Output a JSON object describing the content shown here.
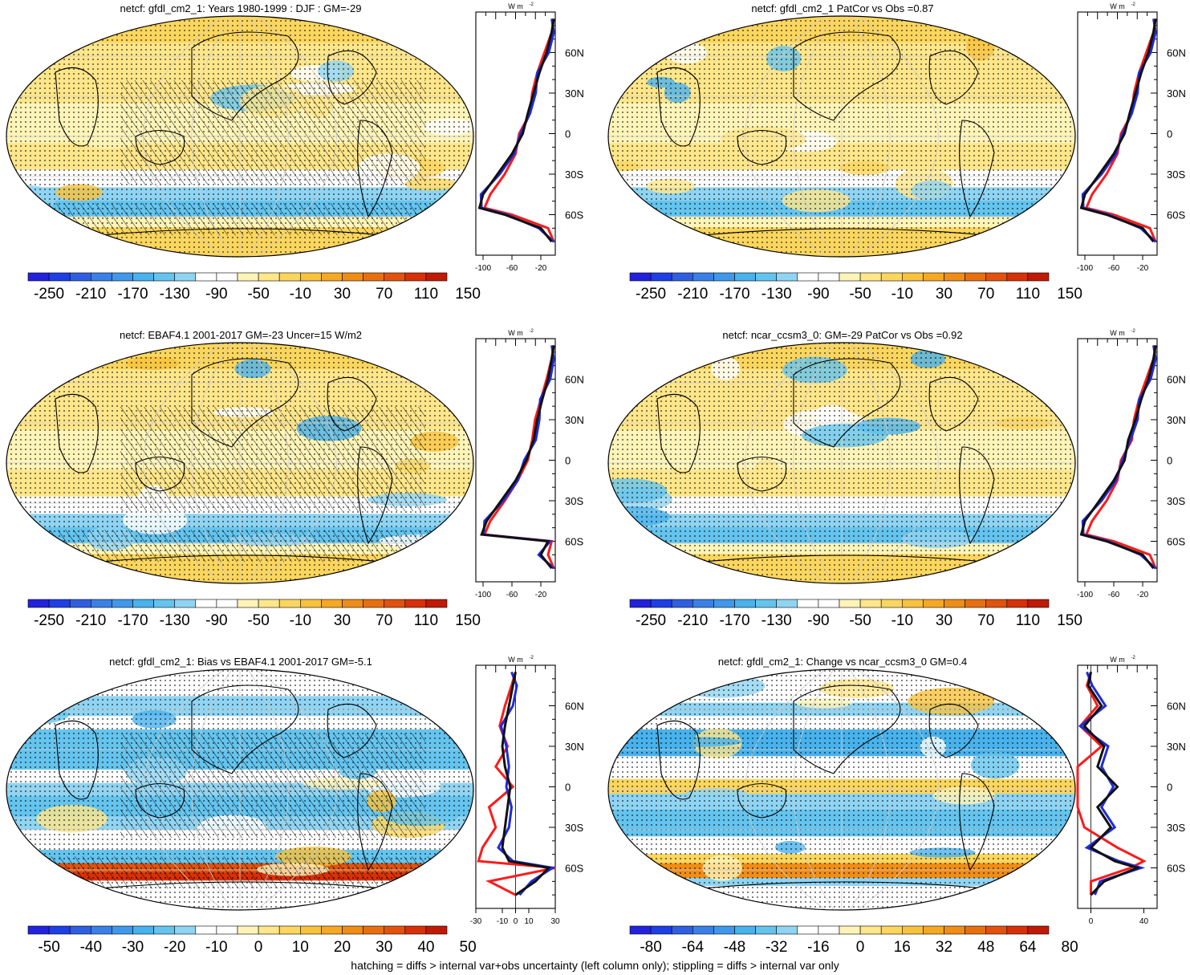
{
  "footnote": "hatching = diffs > internal var+obs uncertainty (left column only); stippling = diffs > internal var only",
  "palettes": {
    "abs": [
      "#2222dd",
      "#1e3ee6",
      "#2f5fe0",
      "#3a80e6",
      "#3f98ea",
      "#48b2ec",
      "#64c4ee",
      "#8fd4f2",
      "#ffffff",
      "#ffffff",
      "#fff4b8",
      "#ffe68a",
      "#fbd65e",
      "#f9c23c",
      "#f5a822",
      "#f08d16",
      "#e86f10",
      "#e2520c",
      "#d83008",
      "#c01a05"
    ],
    "bias": [
      "#2222dd",
      "#1e3ee6",
      "#2f5fe0",
      "#3a80e6",
      "#3f98ea",
      "#48b2ec",
      "#64c4ee",
      "#8fd4f2",
      "#ffffff",
      "#ffffff",
      "#fff4b8",
      "#ffe68a",
      "#fbd65e",
      "#f9c23c",
      "#f5a822",
      "#f08d16",
      "#e86f10",
      "#e2520c",
      "#d83008",
      "#c01a05"
    ]
  },
  "line_colors": {
    "model": "#111111",
    "obs": "#ff1a1a",
    "other": "#1f2bdd"
  },
  "panels": [
    {
      "title": "netcf: gfdl_cm2_1: Years 1980-1999 : DJF : GM=-29",
      "kind": "abs",
      "hatch": true,
      "seed": 1,
      "colorbar_ticks": [
        "-250",
        "-210",
        "-170",
        "-130",
        "-90",
        "-50",
        "-10",
        "30",
        "70",
        "110",
        "150"
      ],
      "profile": {
        "unit": "W m",
        "unit_sup": "-2",
        "xticks": [
          "-100",
          "-60",
          "-20"
        ],
        "xticks_val": [
          -100,
          -60,
          -20
        ],
        "xlim": [
          -110,
          0
        ],
        "zero_line": false,
        "lat_ticks": [
          "60N",
          "30N",
          "0",
          "30S",
          "60S"
        ],
        "lat_vals": [
          60,
          30,
          0,
          -30,
          -60
        ]
      }
    },
    {
      "title": "netcf: gfdl_cm2_1 PatCor vs Obs =0.87",
      "kind": "abs",
      "hatch": false,
      "seed": 2,
      "colorbar_ticks": [
        "-250",
        "-210",
        "-170",
        "-130",
        "-90",
        "-50",
        "-10",
        "30",
        "70",
        "110",
        "150"
      ],
      "profile": {
        "unit": "W m",
        "unit_sup": "-2",
        "xticks": [
          "-100",
          "-60",
          "-20"
        ],
        "xticks_val": [
          -100,
          -60,
          -20
        ],
        "xlim": [
          -110,
          0
        ],
        "zero_line": false,
        "lat_ticks": [
          "60N",
          "30N",
          "0",
          "30S",
          "60S"
        ],
        "lat_vals": [
          60,
          30,
          0,
          -30,
          -60
        ]
      }
    },
    {
      "title": "netcf: EBAF4.1 2001-2017 GM=-23 Uncer=15 W/m2",
      "kind": "abs",
      "hatch": true,
      "seed": 3,
      "colorbar_ticks": [
        "-250",
        "-210",
        "-170",
        "-130",
        "-90",
        "-50",
        "-10",
        "30",
        "70",
        "110",
        "150"
      ],
      "profile": {
        "unit": "W m",
        "unit_sup": "-2",
        "xticks": [
          "-100",
          "-60",
          "-20"
        ],
        "xticks_val": [
          -100,
          -60,
          -20
        ],
        "xlim": [
          -110,
          0
        ],
        "zero_line": false,
        "lat_ticks": [
          "60N",
          "30N",
          "0",
          "30S",
          "60S"
        ],
        "lat_vals": [
          60,
          30,
          0,
          -30,
          -60
        ]
      }
    },
    {
      "title": "netcf: ncar_ccsm3_0: GM=-29 PatCor vs Obs =0.92",
      "kind": "abs",
      "hatch": false,
      "seed": 4,
      "colorbar_ticks": [
        "-250",
        "-210",
        "-170",
        "-130",
        "-90",
        "-50",
        "-10",
        "30",
        "70",
        "110",
        "150"
      ],
      "profile": {
        "unit": "W m",
        "unit_sup": "-2",
        "xticks": [
          "-100",
          "-60",
          "-20"
        ],
        "xticks_val": [
          -100,
          -60,
          -20
        ],
        "xlim": [
          -110,
          0
        ],
        "zero_line": false,
        "lat_ticks": [
          "60N",
          "30N",
          "0",
          "30S",
          "60S"
        ],
        "lat_vals": [
          60,
          30,
          0,
          -30,
          -60
        ]
      }
    },
    {
      "title": "netcf: gfdl_cm2_1: Bias vs EBAF4.1 2001-2017 GM=-5.1",
      "kind": "bias",
      "hatch": true,
      "seed": 5,
      "colorbar_ticks": [
        "-50",
        "-40",
        "-30",
        "-20",
        "-10",
        "0",
        "10",
        "20",
        "30",
        "40",
        "50"
      ],
      "profile": {
        "unit": "W m",
        "unit_sup": "-2",
        "xticks": [
          "-30",
          "-10",
          "0",
          "10",
          "30"
        ],
        "xticks_val": [
          -30,
          -10,
          0,
          10,
          30
        ],
        "xlim": [
          -30,
          30
        ],
        "zero_line": true,
        "lat_ticks": [
          "60N",
          "30N",
          "0",
          "30S",
          "60S"
        ],
        "lat_vals": [
          60,
          30,
          0,
          -30,
          -60
        ]
      }
    },
    {
      "title": "netcf: gfdl_cm2_1: Change vs ncar_ccsm3_0 GM=0.4",
      "kind": "bias",
      "hatch": false,
      "seed": 6,
      "colorbar_ticks": [
        "-80",
        "-64",
        "-48",
        "-32",
        "-16",
        "0",
        "16",
        "32",
        "48",
        "64",
        "80"
      ],
      "profile": {
        "unit": "W m",
        "unit_sup": "-2",
        "xticks": [
          "0",
          "40"
        ],
        "xticks_val": [
          0,
          40
        ],
        "xlim": [
          -10,
          50
        ],
        "zero_line": true,
        "lat_ticks": [
          "60N",
          "30N",
          "0",
          "30S",
          "60S"
        ],
        "lat_vals": [
          60,
          30,
          0,
          -30,
          -60
        ]
      }
    }
  ],
  "chart_data": [
    {
      "type": "heatmap",
      "title": "netcf: gfdl_cm2_1: Years 1980-1999 : DJF : GM=-29",
      "colorbar": [
        -250,
        -210,
        -170,
        -130,
        -90,
        -50,
        -10,
        30,
        70,
        110,
        150
      ],
      "zonal_profile": {
        "lat": [
          85,
          75,
          60,
          45,
          30,
          15,
          0,
          -15,
          -30,
          -45,
          -55,
          -60,
          -70,
          -80
        ],
        "model": [
          -2,
          -5,
          -12,
          -22,
          -30,
          -38,
          -45,
          -60,
          -80,
          -100,
          -105,
          -70,
          -20,
          -5
        ],
        "obs": [
          -2,
          -5,
          -15,
          -25,
          -32,
          -35,
          -50,
          -55,
          -70,
          -90,
          -98,
          -60,
          -10,
          -2
        ]
      }
    },
    {
      "type": "heatmap",
      "title": "netcf: gfdl_cm2_1 PatCor vs Obs =0.87",
      "colorbar": [
        -250,
        -210,
        -170,
        -130,
        -90,
        -50,
        -10,
        30,
        70,
        110,
        150
      ],
      "zonal_profile": {
        "lat": [
          85,
          75,
          60,
          45,
          30,
          15,
          0,
          -15,
          -30,
          -45,
          -55,
          -60,
          -70,
          -80
        ],
        "model": [
          -2,
          -5,
          -12,
          -22,
          -30,
          -38,
          -45,
          -60,
          -80,
          -100,
          -105,
          -70,
          -20,
          -5
        ],
        "obs": [
          -2,
          -5,
          -15,
          -25,
          -32,
          -35,
          -50,
          -55,
          -70,
          -90,
          -98,
          -60,
          -10,
          -2
        ]
      }
    },
    {
      "type": "heatmap",
      "title": "netcf: EBAF4.1 2001-2017 GM=-23 Uncer=15 W/m2",
      "colorbar": [
        -250,
        -210,
        -170,
        -130,
        -90,
        -50,
        -10,
        30,
        70,
        110,
        150
      ],
      "zonal_profile": {
        "lat": [
          85,
          75,
          60,
          45,
          30,
          15,
          0,
          -15,
          -30,
          -45,
          -55,
          -60,
          -70,
          -80
        ],
        "model": [
          -2,
          -5,
          -10,
          -18,
          -25,
          -30,
          -40,
          -55,
          -75,
          -95,
          -102,
          -10,
          -20,
          -5
        ],
        "obs": [
          -2,
          -5,
          -12,
          -20,
          -28,
          -32,
          -38,
          -52,
          -70,
          -90,
          -98,
          -5,
          -10,
          -2
        ]
      }
    },
    {
      "type": "heatmap",
      "title": "netcf: ncar_ccsm3_0: GM=-29 PatCor vs Obs =0.92",
      "colorbar": [
        -250,
        -210,
        -170,
        -130,
        -90,
        -50,
        -10,
        30,
        70,
        110,
        150
      ],
      "zonal_profile": {
        "lat": [
          85,
          75,
          60,
          45,
          30,
          15,
          0,
          -15,
          -30,
          -45,
          -55,
          -60,
          -70,
          -80
        ],
        "model": [
          -2,
          -5,
          -12,
          -22,
          -30,
          -40,
          -45,
          -60,
          -80,
          -100,
          -105,
          -70,
          -20,
          -5
        ],
        "obs": [
          -2,
          -5,
          -15,
          -25,
          -32,
          -35,
          -50,
          -55,
          -70,
          -90,
          -98,
          -60,
          -10,
          -2
        ]
      }
    },
    {
      "type": "heatmap",
      "title": "netcf: gfdl_cm2_1: Bias vs EBAF4.1 2001-2017 GM=-5.1",
      "colorbar": [
        -50,
        -40,
        -30,
        -20,
        -10,
        0,
        10,
        20,
        30,
        40,
        50
      ],
      "zonal_profile": {
        "lat": [
          85,
          75,
          60,
          45,
          30,
          15,
          0,
          -15,
          -30,
          -45,
          -55,
          -60,
          -70,
          -80
        ],
        "model": [
          0,
          -2,
          -5,
          -8,
          -10,
          -8,
          -4,
          -6,
          -8,
          -10,
          -5,
          25,
          15,
          0
        ],
        "obs": [
          0,
          -3,
          -8,
          -12,
          -6,
          -15,
          -2,
          -20,
          -15,
          -25,
          -28,
          30,
          -20,
          0
        ]
      }
    },
    {
      "type": "heatmap",
      "title": "netcf: gfdl_cm2_1: Change vs ncar_ccsm3_0 GM=0.4",
      "colorbar": [
        -80,
        -64,
        -48,
        -32,
        -16,
        0,
        16,
        32,
        48,
        64,
        80
      ],
      "zonal_profile": {
        "lat": [
          85,
          75,
          60,
          45,
          30,
          15,
          0,
          -15,
          -30,
          -45,
          -55,
          -60,
          -70,
          -80
        ],
        "model": [
          0,
          -2,
          8,
          -5,
          10,
          5,
          20,
          5,
          15,
          0,
          18,
          35,
          10,
          0
        ],
        "obs": [
          0,
          -3,
          5,
          -8,
          8,
          -10,
          -30,
          -20,
          -5,
          20,
          40,
          30,
          0,
          0
        ]
      }
    }
  ]
}
